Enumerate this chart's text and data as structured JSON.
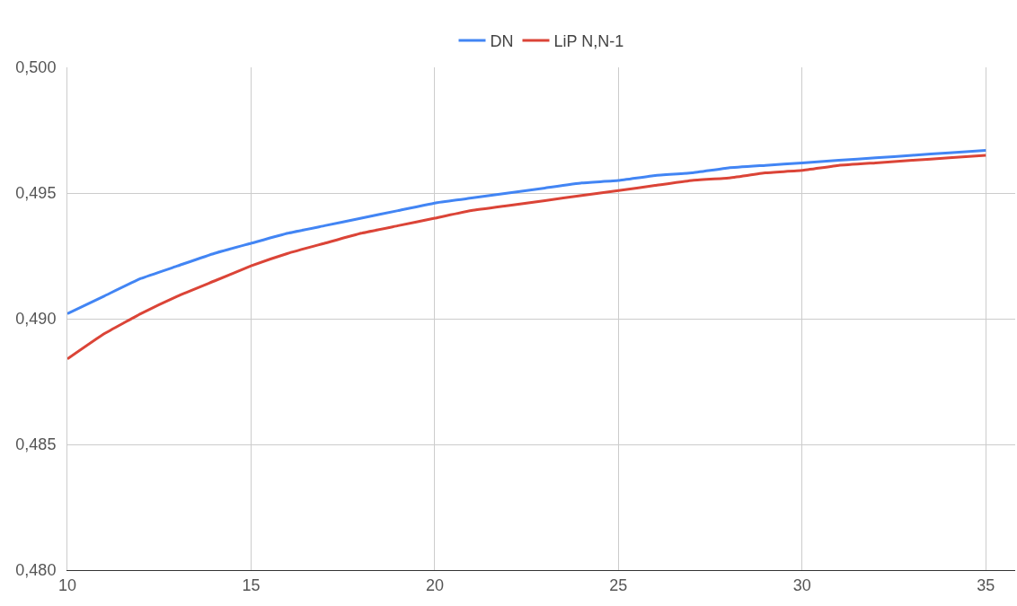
{
  "chart_data": {
    "type": "line",
    "x": [
      10,
      11,
      12,
      13,
      14,
      15,
      16,
      17,
      18,
      19,
      20,
      21,
      22,
      23,
      24,
      25,
      26,
      27,
      28,
      29,
      30,
      31,
      32,
      33,
      34,
      35
    ],
    "series": [
      {
        "name": "DN",
        "color": "#4285f4",
        "values": [
          0.4902,
          0.4909,
          0.4916,
          0.4921,
          0.4926,
          0.493,
          0.4934,
          0.4937,
          0.494,
          0.4943,
          0.4946,
          0.4948,
          0.495,
          0.4952,
          0.4954,
          0.4955,
          0.4957,
          0.4958,
          0.496,
          0.4961,
          0.4962,
          0.4963,
          0.4964,
          0.4965,
          0.4966,
          0.4967
        ]
      },
      {
        "name": "LiP N,N-1",
        "color": "#db4437",
        "values": [
          0.4884,
          0.4894,
          0.4902,
          0.4909,
          0.4915,
          0.4921,
          0.4926,
          0.493,
          0.4934,
          0.4937,
          0.494,
          0.4943,
          0.4945,
          0.4947,
          0.4949,
          0.4951,
          0.4953,
          0.4955,
          0.4956,
          0.4958,
          0.4959,
          0.4961,
          0.4962,
          0.4963,
          0.4964,
          0.4965
        ]
      }
    ],
    "xlim": [
      10,
      35.8
    ],
    "xticks": [
      10,
      15,
      20,
      25,
      30,
      35
    ],
    "ylim": [
      0.48,
      0.5
    ],
    "yticks": [
      {
        "value": 0.48,
        "label": "0,480"
      },
      {
        "value": 0.485,
        "label": "0,485"
      },
      {
        "value": 0.49,
        "label": "0,490"
      },
      {
        "value": 0.495,
        "label": "0,495"
      },
      {
        "value": 0.5,
        "label": "0,500"
      }
    ],
    "grid": true,
    "legend": "top",
    "marker": "none",
    "line_style": "solid"
  }
}
